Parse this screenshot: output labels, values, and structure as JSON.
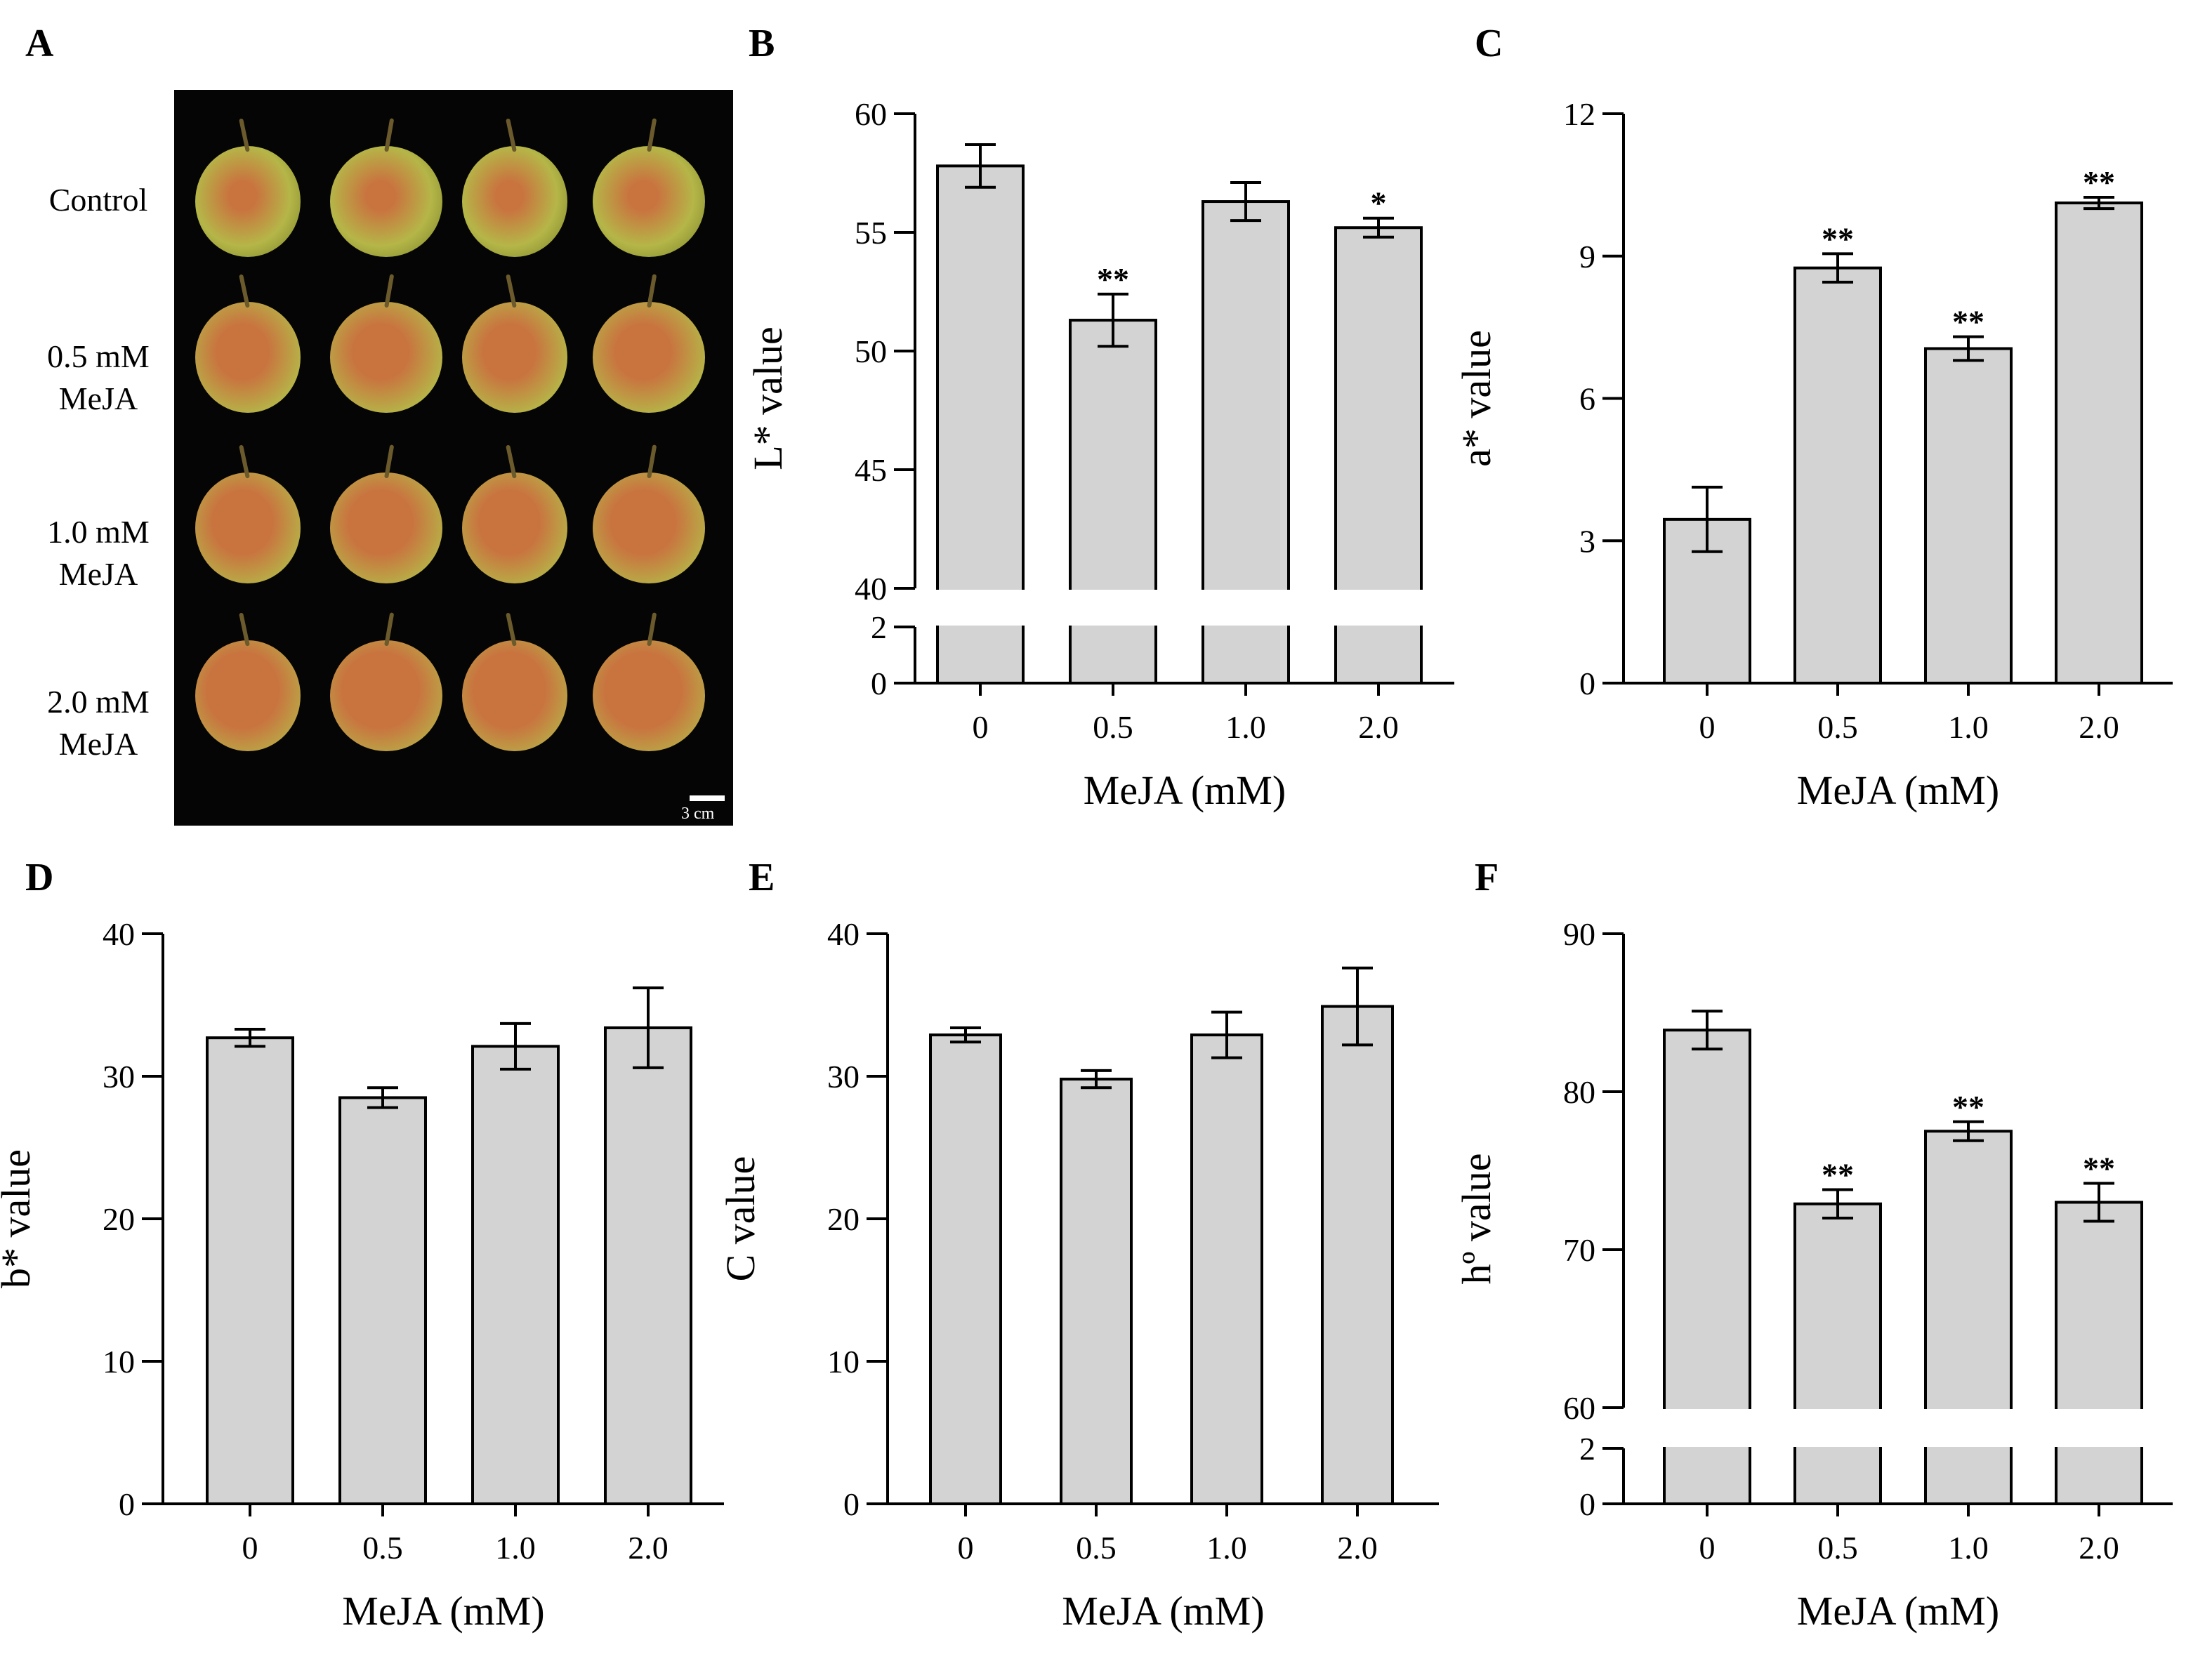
{
  "panels": {
    "A": "A",
    "B": "B",
    "C": "C",
    "D": "D",
    "E": "E",
    "F": "F"
  },
  "photo": {
    "rows": [
      {
        "label_lines": [
          "Control"
        ]
      },
      {
        "label_lines": [
          "0.5 mM",
          "MeJA"
        ]
      },
      {
        "label_lines": [
          "1.0 mM",
          "MeJA"
        ]
      },
      {
        "label_lines": [
          "2.0 mM",
          "MeJA"
        ]
      }
    ],
    "scale_bar": "3 cm",
    "colors": {
      "background": "#050505",
      "fruit_green": "#b5b648",
      "fruit_red": "#c9733f"
    }
  },
  "chart_data": [
    {
      "panel": "B",
      "type": "bar",
      "categories": [
        "0",
        "0.5",
        "1.0",
        "2.0"
      ],
      "values": [
        57.8,
        51.3,
        56.3,
        55.2
      ],
      "errors": [
        0.9,
        1.1,
        0.8,
        0.4
      ],
      "significance": [
        "",
        "**",
        "",
        "*"
      ],
      "xlabel": "MeJA (mM)",
      "ylabel": "L* value",
      "ylim": [
        0,
        60
      ],
      "axis_break": [
        2,
        40
      ],
      "yticks": [
        0,
        2,
        40,
        45,
        50,
        55,
        60
      ],
      "bar_color": "#d3d3d3"
    },
    {
      "panel": "C",
      "type": "bar",
      "categories": [
        "0",
        "0.5",
        "1.0",
        "2.0"
      ],
      "values": [
        3.45,
        8.75,
        7.05,
        10.12
      ],
      "errors": [
        0.68,
        0.3,
        0.25,
        0.12
      ],
      "significance": [
        "",
        "**",
        "**",
        "**"
      ],
      "xlabel": "MeJA (mM)",
      "ylabel": "a* value",
      "ylim": [
        0,
        12
      ],
      "yticks": [
        0,
        3,
        6,
        9,
        12
      ],
      "bar_color": "#d3d3d3"
    },
    {
      "panel": "D",
      "type": "bar",
      "categories": [
        "0",
        "0.5",
        "1.0",
        "2.0"
      ],
      "values": [
        32.7,
        28.5,
        32.1,
        33.4
      ],
      "errors": [
        0.6,
        0.7,
        1.6,
        2.8
      ],
      "significance": [
        "",
        "",
        "",
        ""
      ],
      "xlabel": "MeJA (mM)",
      "ylabel": "b* value",
      "ylim": [
        0,
        40
      ],
      "yticks": [
        0,
        10,
        20,
        30,
        40
      ],
      "bar_color": "#d3d3d3"
    },
    {
      "panel": "E",
      "type": "bar",
      "categories": [
        "0",
        "0.5",
        "1.0",
        "2.0"
      ],
      "values": [
        32.9,
        29.8,
        32.9,
        34.9
      ],
      "errors": [
        0.5,
        0.6,
        1.6,
        2.7
      ],
      "significance": [
        "",
        "",
        "",
        ""
      ],
      "xlabel": "MeJA (mM)",
      "ylabel": "C value",
      "ylim": [
        0,
        40
      ],
      "yticks": [
        0,
        10,
        20,
        30,
        40
      ],
      "bar_color": "#d3d3d3"
    },
    {
      "panel": "F",
      "type": "bar",
      "categories": [
        "0",
        "0.5",
        "1.0",
        "2.0"
      ],
      "values": [
        83.9,
        72.9,
        77.5,
        73.0
      ],
      "errors": [
        1.2,
        0.9,
        0.6,
        1.2
      ],
      "significance": [
        "",
        "**",
        "**",
        "**"
      ],
      "xlabel": "MeJA (mM)",
      "ylabel": "hº value",
      "ylim": [
        0,
        90
      ],
      "axis_break": [
        2,
        60
      ],
      "yticks": [
        0,
        2,
        60,
        70,
        80,
        90
      ],
      "bar_color": "#d3d3d3"
    }
  ]
}
